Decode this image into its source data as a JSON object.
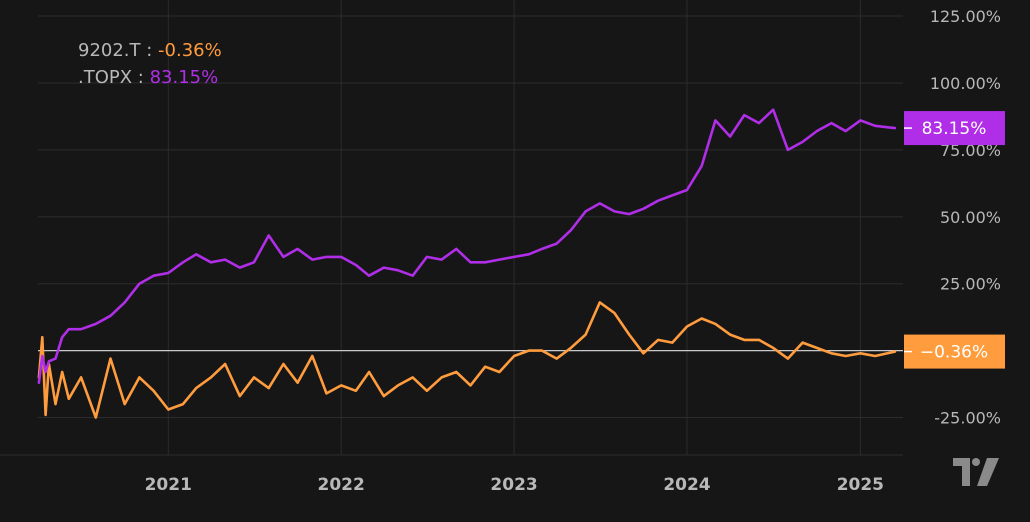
{
  "chart_data": {
    "type": "line",
    "y_unit": "%",
    "y_ticks": [
      "125.00%",
      "100.00%",
      "75.00%",
      "50.00%",
      "25.00%",
      "-25.00%"
    ],
    "y_tick_values": [
      125,
      100,
      75,
      50,
      25,
      -25
    ],
    "ylim": [
      -39,
      131
    ],
    "x_ticks": [
      "2021",
      "2022",
      "2023",
      "2024",
      "2025"
    ],
    "x_tick_values": [
      "2021-01-01",
      "2022-01-01",
      "2023-01-01",
      "2024-01-01",
      "2025-01-01"
    ],
    "xlim": [
      "2020-04-01",
      "2025-04-01"
    ],
    "grid": true,
    "baseline": 0,
    "legend_position": "top-left",
    "series": [
      {
        "name": "9202.T",
        "last_label": "-0.36%",
        "last_tag": "−0.36%",
        "color": "#ff9c3e",
        "x": [
          "2020-04-03",
          "2020-04-10",
          "2020-04-17",
          "2020-04-24",
          "2020-05-08",
          "2020-05-22",
          "2020-06-05",
          "2020-07-01",
          "2020-08-01",
          "2020-09-01",
          "2020-10-01",
          "2020-11-01",
          "2020-12-01",
          "2021-01-01",
          "2021-02-01",
          "2021-03-01",
          "2021-04-01",
          "2021-05-01",
          "2021-06-01",
          "2021-07-01",
          "2021-08-01",
          "2021-09-01",
          "2021-10-01",
          "2021-11-01",
          "2021-12-01",
          "2022-01-01",
          "2022-02-01",
          "2022-03-01",
          "2022-04-01",
          "2022-05-01",
          "2022-06-01",
          "2022-07-01",
          "2022-08-01",
          "2022-09-01",
          "2022-10-01",
          "2022-11-01",
          "2022-12-01",
          "2023-01-01",
          "2023-02-01",
          "2023-03-01",
          "2023-04-01",
          "2023-05-01",
          "2023-06-01",
          "2023-07-01",
          "2023-08-01",
          "2023-09-01",
          "2023-10-01",
          "2023-11-01",
          "2023-12-01",
          "2024-01-01",
          "2024-02-01",
          "2024-03-01",
          "2024-04-01",
          "2024-05-01",
          "2024-06-01",
          "2024-07-01",
          "2024-08-01",
          "2024-09-01",
          "2024-10-01",
          "2024-11-01",
          "2024-12-01",
          "2025-01-01",
          "2025-02-01",
          "2025-03-15"
        ],
        "y": [
          -10,
          5,
          -24,
          -5,
          -20,
          -8,
          -18,
          -10,
          -25,
          -3,
          -20,
          -10,
          -15,
          -22,
          -20,
          -14,
          -10,
          -5,
          -17,
          -10,
          -14,
          -5,
          -12,
          -2,
          -16,
          -13,
          -15,
          -8,
          -17,
          -13,
          -10,
          -15,
          -10,
          -8,
          -13,
          -6,
          -8,
          -2,
          0,
          0,
          -3,
          1,
          6,
          18,
          14,
          6,
          -1,
          4,
          3,
          9,
          12,
          10,
          6,
          4,
          4,
          1,
          -3,
          3,
          1,
          -1,
          -2,
          -1,
          -2,
          -0.36
        ]
      },
      {
        "name": ".TOPX",
        "last_label": "83.15%",
        "last_tag": "83.15%",
        "color": "#b02ee8",
        "x": [
          "2020-04-03",
          "2020-04-10",
          "2020-04-17",
          "2020-04-24",
          "2020-05-08",
          "2020-05-22",
          "2020-06-05",
          "2020-07-01",
          "2020-08-01",
          "2020-09-01",
          "2020-10-01",
          "2020-11-01",
          "2020-12-01",
          "2021-01-01",
          "2021-02-01",
          "2021-03-01",
          "2021-04-01",
          "2021-05-01",
          "2021-06-01",
          "2021-07-01",
          "2021-08-01",
          "2021-09-01",
          "2021-10-01",
          "2021-11-01",
          "2021-12-01",
          "2022-01-01",
          "2022-02-01",
          "2022-03-01",
          "2022-04-01",
          "2022-05-01",
          "2022-06-01",
          "2022-07-01",
          "2022-08-01",
          "2022-09-01",
          "2022-10-01",
          "2022-11-01",
          "2022-12-01",
          "2023-01-01",
          "2023-02-01",
          "2023-03-01",
          "2023-04-01",
          "2023-05-01",
          "2023-06-01",
          "2023-07-01",
          "2023-08-01",
          "2023-09-01",
          "2023-10-01",
          "2023-11-01",
          "2023-12-01",
          "2024-01-01",
          "2024-02-01",
          "2024-03-01",
          "2024-04-01",
          "2024-05-01",
          "2024-06-01",
          "2024-07-01",
          "2024-08-01",
          "2024-09-01",
          "2024-10-01",
          "2024-11-01",
          "2024-12-01",
          "2025-01-01",
          "2025-02-01",
          "2025-03-15"
        ],
        "y": [
          -12,
          -2,
          -8,
          -4,
          -3,
          5,
          8,
          8,
          10,
          13,
          18,
          25,
          28,
          29,
          33,
          36,
          33,
          34,
          31,
          33,
          43,
          35,
          38,
          34,
          35,
          35,
          32,
          28,
          31,
          30,
          28,
          35,
          34,
          38,
          33,
          33,
          34,
          35,
          36,
          38,
          40,
          45,
          52,
          55,
          52,
          51,
          53,
          56,
          58,
          60,
          69,
          86,
          80,
          88,
          85,
          90,
          75,
          78,
          82,
          85,
          82,
          86,
          84,
          83.15
        ]
      }
    ]
  },
  "watermark": "TradingView"
}
